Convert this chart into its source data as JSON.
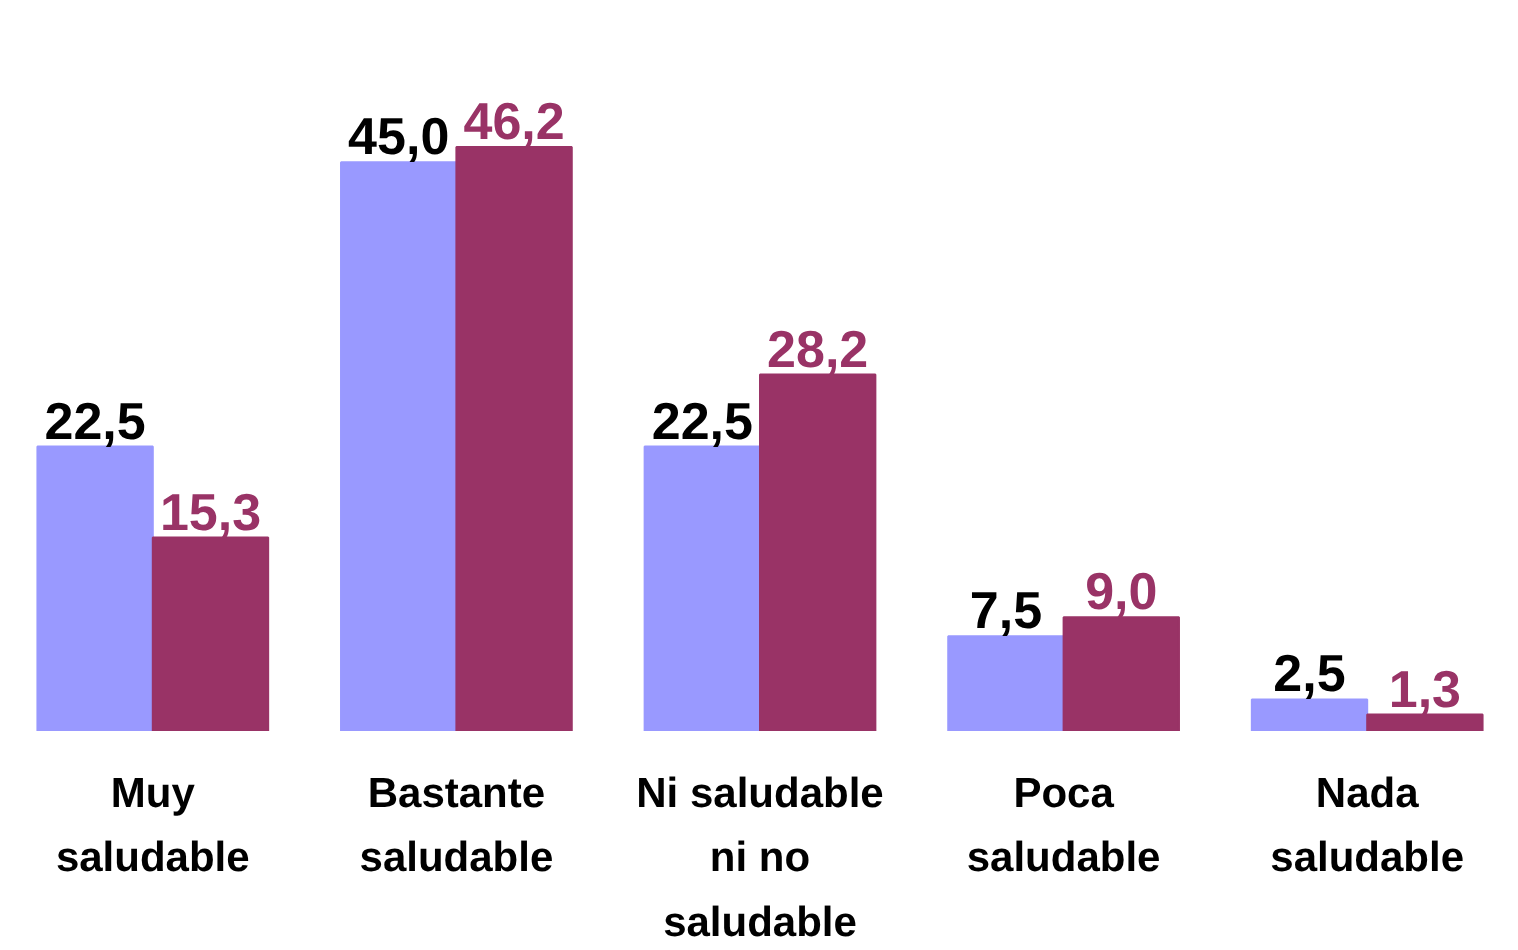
{
  "chart_data": {
    "type": "bar",
    "categories": [
      "Muy\nsaludable",
      "Bastante\nsaludable",
      "Ni saludable\nni no\nsaludable",
      "Poca\nsaludable",
      "Nada\nsaludable"
    ],
    "series": [
      {
        "color": "#9999ff",
        "values": [
          22.5,
          45.0,
          22.5,
          7.5,
          2.5
        ],
        "value_labels": [
          "22,5",
          "45,0",
          "22,5",
          "7,5",
          "2,5"
        ]
      },
      {
        "color": "#993366",
        "values": [
          15.3,
          46.2,
          28.2,
          9.0,
          1.3
        ],
        "value_labels": [
          "15,3",
          "46,2",
          "28,2",
          "9,0",
          "1,3"
        ]
      }
    ],
    "grid": false
  }
}
